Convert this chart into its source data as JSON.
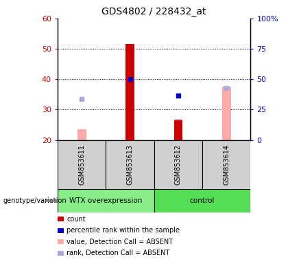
{
  "title": "GDS4802 / 228432_at",
  "samples": [
    "GSM853611",
    "GSM853613",
    "GSM853612",
    "GSM853614"
  ],
  "ylim_left": [
    20,
    60
  ],
  "ylim_right": [
    0,
    100
  ],
  "yticks_left": [
    20,
    30,
    40,
    50,
    60
  ],
  "ytick_labels_left": [
    "20",
    "30",
    "40",
    "50",
    "60"
  ],
  "yticks_right": [
    0,
    25,
    50,
    75,
    100
  ],
  "ytick_labels_right": [
    "0",
    "25",
    "50",
    "75",
    "100%"
  ],
  "bar_bottom": 20,
  "red_bars": [
    null,
    51.5,
    26.5,
    null
  ],
  "pink_bars": [
    23.5,
    null,
    27.0,
    37.5
  ],
  "blue_squares": [
    null,
    40.0,
    34.5,
    null
  ],
  "lavender_squares": [
    33.5,
    null,
    null,
    37.0
  ],
  "red_color": "#cc0000",
  "pink_color": "#ffaaaa",
  "blue_color": "#0000cc",
  "lavender_color": "#aaaadd",
  "group_info": [
    {
      "label": "WTX overexpression",
      "xmin": -0.5,
      "xmax": 1.5,
      "color": "#88ee88"
    },
    {
      "label": "control",
      "xmin": 1.5,
      "xmax": 3.5,
      "color": "#55dd55"
    }
  ],
  "legend_items": [
    {
      "color": "#cc0000",
      "label": "count"
    },
    {
      "color": "#0000cc",
      "label": "percentile rank within the sample"
    },
    {
      "color": "#ffaaaa",
      "label": "value, Detection Call = ABSENT"
    },
    {
      "color": "#aaaadd",
      "label": "rank, Detection Call = ABSENT"
    }
  ],
  "genotype_label": "genotype/variation",
  "ylabel_left_color": "#cc0000",
  "ylabel_right_color": "#0000cc",
  "sample_bg_color": "#d0d0d0",
  "bar_width": 0.18
}
